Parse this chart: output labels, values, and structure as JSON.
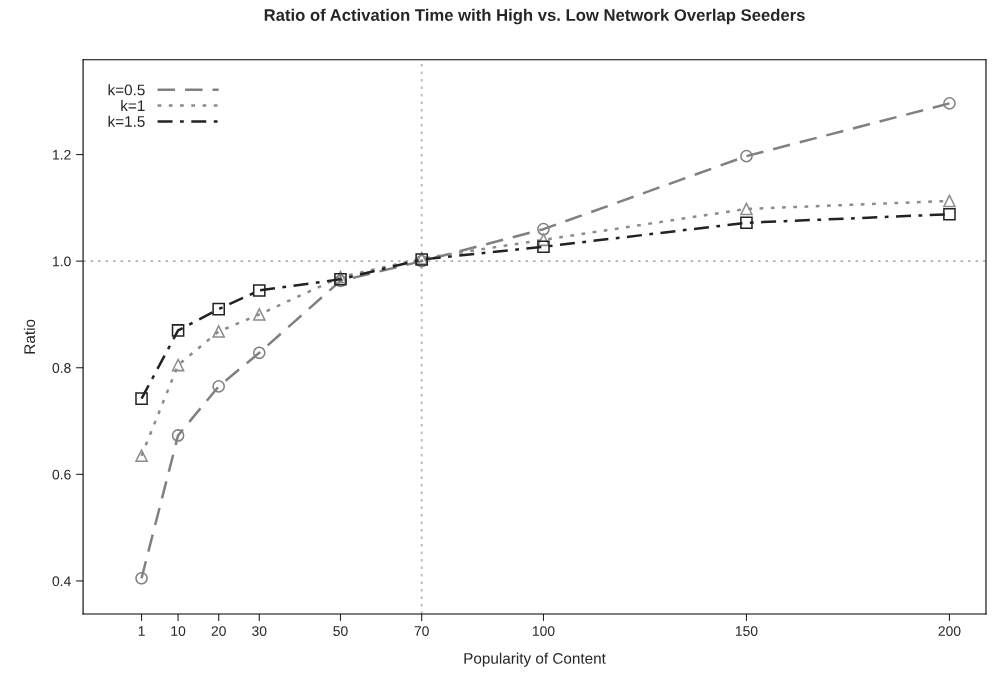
{
  "chart_data": {
    "type": "line",
    "title": "Ratio of Activation Time with High vs. Low Network Overlap Seeders",
    "xlabel": "Popularity of Content",
    "ylabel": "Ratio",
    "x": [
      1,
      10,
      20,
      30,
      50,
      70,
      100,
      150,
      200
    ],
    "series": [
      {
        "name": "k=0.5",
        "color": "#808080",
        "line_style": "dashed",
        "marker": "circle",
        "values": [
          0.405,
          0.673,
          0.765,
          0.828,
          0.963,
          1.0,
          1.06,
          1.197,
          1.296
        ]
      },
      {
        "name": "k=1",
        "color": "#8c8c8c",
        "line_style": "dotted",
        "marker": "triangle",
        "values": [
          0.635,
          0.805,
          0.868,
          0.9,
          0.97,
          1.005,
          1.04,
          1.098,
          1.113
        ]
      },
      {
        "name": "k=1.5",
        "color": "#222222",
        "line_style": "dashdot",
        "marker": "square",
        "values": [
          0.742,
          0.87,
          0.91,
          0.945,
          0.966,
          1.003,
          1.027,
          1.072,
          1.088
        ]
      }
    ],
    "xlim": [
      -13.4,
      209
    ],
    "ylim": [
      0.338,
      1.378
    ],
    "xticks": [
      1,
      10,
      20,
      30,
      50,
      70,
      100,
      150,
      200
    ],
    "yticks": [
      {
        "value": 0.4,
        "label": "0.4"
      },
      {
        "value": 0.6,
        "label": "0.6"
      },
      {
        "value": 0.8,
        "label": "0.8"
      },
      {
        "value": 1.0,
        "label": "1.0"
      },
      {
        "value": 1.2,
        "label": "1.2"
      }
    ],
    "ref_lines": [
      {
        "axis": "x",
        "value": 70,
        "color": "#b0b0b0",
        "line_style": "dotted"
      },
      {
        "axis": "y",
        "value": 1.0,
        "color": "#b0b0b0",
        "line_style": "dotted"
      }
    ],
    "legend": "top left",
    "grid": false
  }
}
